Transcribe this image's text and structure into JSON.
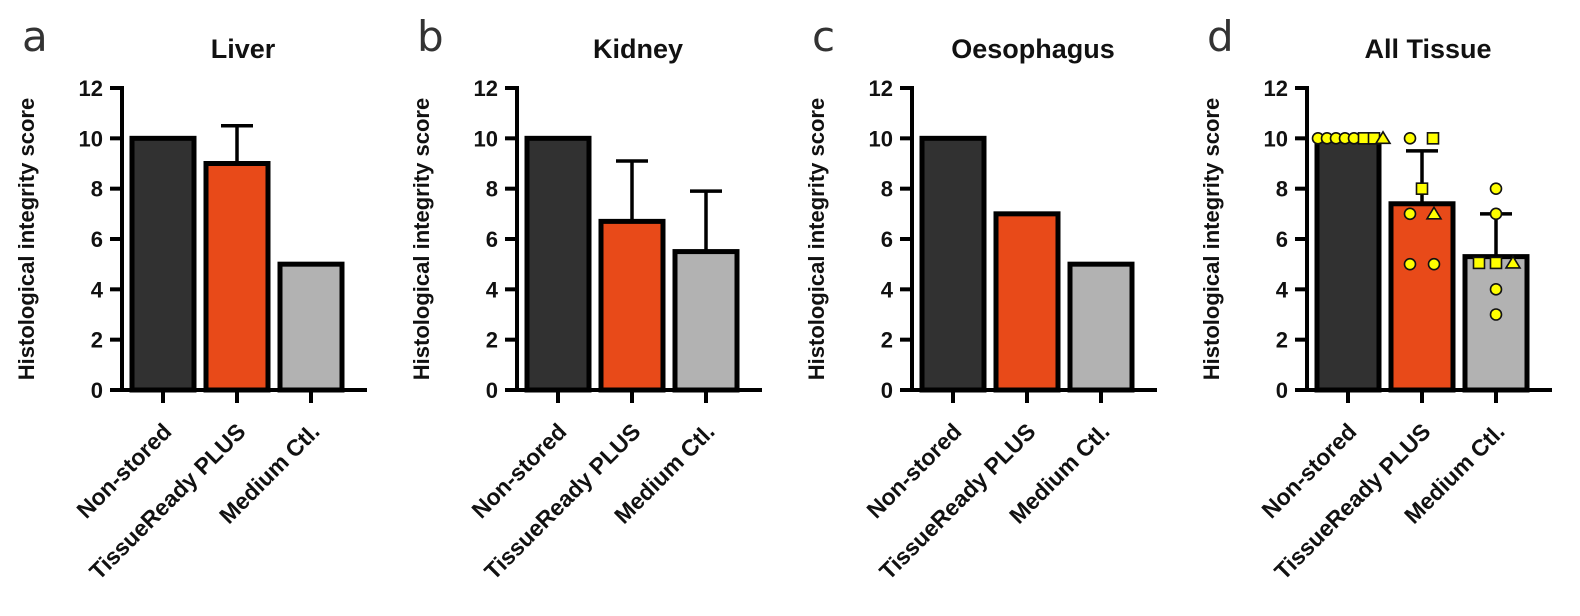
{
  "figure": {
    "ylabel": "Histological integrity score",
    "categories": [
      "Non-stored",
      "TissueReady PLUS",
      "Medium Ctl."
    ]
  },
  "styles": {
    "bar_fill_colors": [
      "#313131",
      "#e84a19",
      "#b2b2b2"
    ],
    "bar_stroke_color": "#000000",
    "axis_color": "#000000",
    "text_color": "#111111",
    "marker_fill_color": "#ffff00",
    "marker_stroke_color": "#111111",
    "panel_letter_color": "#333333"
  },
  "chart_data": [
    {
      "type": "bar",
      "panel_letter": "a",
      "title": "Liver",
      "ylabel": "Histological integrity score",
      "ylim": [
        0,
        12
      ],
      "yticks": [
        0,
        2,
        4,
        6,
        8,
        10,
        12
      ],
      "categories": [
        "Non-stored",
        "TissueReady PLUS",
        "Medium Ctl."
      ],
      "values": [
        10,
        9,
        5
      ],
      "errors_plus": [
        0,
        1.5,
        0
      ],
      "points": []
    },
    {
      "type": "bar",
      "panel_letter": "b",
      "title": "Kidney",
      "ylabel": "Histological integrity score",
      "ylim": [
        0,
        12
      ],
      "yticks": [
        0,
        2,
        4,
        6,
        8,
        10,
        12
      ],
      "categories": [
        "Non-stored",
        "TissueReady PLUS",
        "Medium Ctl."
      ],
      "values": [
        10,
        6.7,
        5.5
      ],
      "errors_plus": [
        0,
        2.4,
        2.4
      ],
      "points": []
    },
    {
      "type": "bar",
      "panel_letter": "c",
      "title": "Oesophagus",
      "ylabel": "Histological integrity score",
      "ylim": [
        0,
        12
      ],
      "yticks": [
        0,
        2,
        4,
        6,
        8,
        10,
        12
      ],
      "categories": [
        "Non-stored",
        "TissueReady PLUS",
        "Medium Ctl."
      ],
      "values": [
        10,
        7,
        5
      ],
      "errors_plus": [
        0,
        0,
        0
      ],
      "points": []
    },
    {
      "type": "bar",
      "panel_letter": "d",
      "title": "All Tissue",
      "ylabel": "Histological integrity score",
      "ylim": [
        0,
        12
      ],
      "yticks": [
        0,
        2,
        4,
        6,
        8,
        10,
        12
      ],
      "categories": [
        "Non-stored",
        "TissueReady PLUS",
        "Medium Ctl."
      ],
      "values": [
        10,
        7.4,
        5.3
      ],
      "errors_plus": [
        0,
        2.1,
        1.7
      ],
      "points": [
        {
          "group": 0,
          "shape": "circle",
          "dx": -30,
          "y": 10
        },
        {
          "group": 0,
          "shape": "circle",
          "dx": -21,
          "y": 10
        },
        {
          "group": 0,
          "shape": "circle",
          "dx": -12,
          "y": 10
        },
        {
          "group": 0,
          "shape": "circle",
          "dx": -3,
          "y": 10
        },
        {
          "group": 0,
          "shape": "circle",
          "dx": 6,
          "y": 10
        },
        {
          "group": 0,
          "shape": "square",
          "dx": 16,
          "y": 10
        },
        {
          "group": 0,
          "shape": "square",
          "dx": 26,
          "y": 10
        },
        {
          "group": 0,
          "shape": "triangle",
          "dx": 35,
          "y": 10
        },
        {
          "group": 1,
          "shape": "circle",
          "dx": -12,
          "y": 10
        },
        {
          "group": 1,
          "shape": "square",
          "dx": 11,
          "y": 10
        },
        {
          "group": 1,
          "shape": "square",
          "dx": 0,
          "y": 8
        },
        {
          "group": 1,
          "shape": "circle",
          "dx": -12,
          "y": 7
        },
        {
          "group": 1,
          "shape": "triangle",
          "dx": 12,
          "y": 7
        },
        {
          "group": 1,
          "shape": "circle",
          "dx": -12,
          "y": 5
        },
        {
          "group": 1,
          "shape": "circle",
          "dx": 12,
          "y": 5
        },
        {
          "group": 2,
          "shape": "circle",
          "dx": 0,
          "y": 8
        },
        {
          "group": 2,
          "shape": "circle",
          "dx": 0,
          "y": 7
        },
        {
          "group": 2,
          "shape": "square",
          "dx": -17,
          "y": 5.05
        },
        {
          "group": 2,
          "shape": "square",
          "dx": 0,
          "y": 5.05
        },
        {
          "group": 2,
          "shape": "triangle",
          "dx": 17,
          "y": 5.05
        },
        {
          "group": 2,
          "shape": "circle",
          "dx": 0,
          "y": 4
        },
        {
          "group": 2,
          "shape": "circle",
          "dx": 0,
          "y": 3
        }
      ]
    }
  ]
}
